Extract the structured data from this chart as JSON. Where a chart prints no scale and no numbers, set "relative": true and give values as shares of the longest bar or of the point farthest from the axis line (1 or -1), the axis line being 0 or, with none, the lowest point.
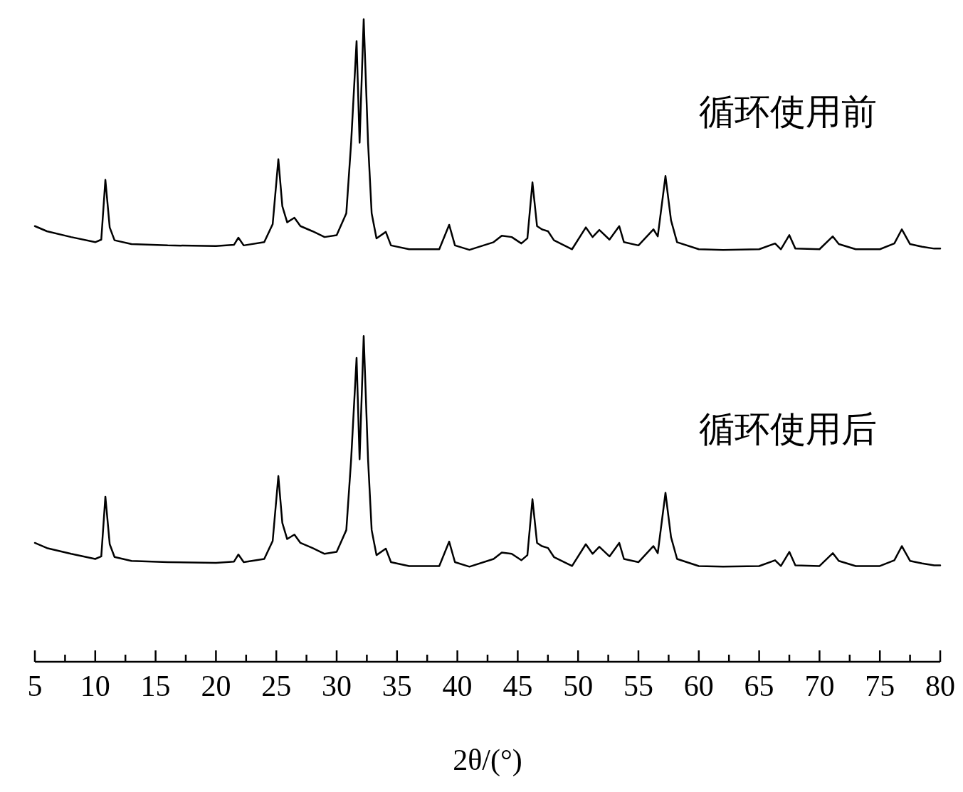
{
  "chart_data": {
    "type": "line",
    "relative": true,
    "xlabel": "2θ/(°)",
    "tick_labels": "x",
    "grid": false,
    "marker": "none",
    "line_style": "solid",
    "xlim": [
      5,
      80
    ],
    "xticks": [
      5,
      {
        "value": 7.5,
        "label": null
      },
      10,
      {
        "value": 12.5,
        "label": null
      },
      15,
      {
        "value": 17.5,
        "label": null
      },
      20,
      {
        "value": 22.5,
        "label": null
      },
      25,
      {
        "value": 27.5,
        "label": null
      },
      30,
      {
        "value": 32.5,
        "label": null
      },
      35,
      {
        "value": 37.5,
        "label": null
      },
      40,
      {
        "value": 42.5,
        "label": null
      },
      45,
      {
        "value": 47.5,
        "label": null
      },
      50,
      {
        "value": 52.5,
        "label": null
      },
      55,
      {
        "value": 57.5,
        "label": null
      },
      60,
      {
        "value": 62.5,
        "label": null
      },
      65,
      {
        "value": 67.5,
        "label": null
      },
      70,
      {
        "value": 72.5,
        "label": null
      },
      75,
      {
        "value": 77.5,
        "label": null
      },
      80
    ],
    "x": [
      5,
      6,
      8,
      10,
      10.5,
      10.84,
      11.2,
      11.6,
      13,
      16,
      20,
      21.5,
      21.86,
      22.3,
      24,
      24.7,
      25.17,
      25.5,
      25.9,
      26.5,
      27,
      28,
      29,
      30,
      30.8,
      31.2,
      31.65,
      31.9,
      32.24,
      32.6,
      32.9,
      33.3,
      34.07,
      34.5,
      36,
      38.5,
      39.32,
      39.8,
      41,
      43,
      43.68,
      44.5,
      45.3,
      45.8,
      46.22,
      46.6,
      47,
      47.51,
      48,
      49.5,
      50.64,
      51.2,
      51.76,
      52.6,
      53.41,
      53.8,
      55,
      56.24,
      56.6,
      57.24,
      57.7,
      58.2,
      60,
      62,
      65,
      66.32,
      66.8,
      67.5,
      68,
      70,
      71.1,
      71.6,
      73,
      75,
      76.2,
      76.82,
      77.5,
      78.5,
      79.5,
      80
    ],
    "series": [
      {
        "name": "循环使用前",
        "color": "#000000",
        "values": [
          0.678,
          0.67,
          0.661,
          0.653,
          0.657,
          0.75,
          0.676,
          0.656,
          0.65,
          0.648,
          0.647,
          0.649,
          0.66,
          0.648,
          0.653,
          0.681,
          0.782,
          0.709,
          0.684,
          0.691,
          0.678,
          0.67,
          0.661,
          0.664,
          0.698,
          0.808,
          0.966,
          0.808,
          1,
          0.808,
          0.698,
          0.659,
          0.669,
          0.648,
          0.642,
          0.642,
          0.68,
          0.648,
          0.641,
          0.653,
          0.663,
          0.661,
          0.651,
          0.659,
          0.746,
          0.678,
          0.673,
          0.67,
          0.656,
          0.642,
          0.676,
          0.661,
          0.672,
          0.657,
          0.678,
          0.653,
          0.648,
          0.673,
          0.662,
          0.756,
          0.687,
          0.653,
          0.642,
          0.641,
          0.642,
          0.651,
          0.642,
          0.664,
          0.643,
          0.642,
          0.662,
          0.65,
          0.642,
          0.642,
          0.651,
          0.673,
          0.65,
          0.646,
          0.643,
          0.643
        ]
      },
      {
        "name": "循环使用后",
        "color": "#000000",
        "values": [
          0.185,
          0.177,
          0.168,
          0.16,
          0.164,
          0.257,
          0.183,
          0.163,
          0.157,
          0.155,
          0.154,
          0.156,
          0.167,
          0.155,
          0.16,
          0.188,
          0.289,
          0.216,
          0.191,
          0.198,
          0.185,
          0.177,
          0.168,
          0.171,
          0.205,
          0.315,
          0.473,
          0.315,
          0.507,
          0.315,
          0.205,
          0.166,
          0.176,
          0.155,
          0.149,
          0.149,
          0.187,
          0.155,
          0.148,
          0.16,
          0.17,
          0.168,
          0.158,
          0.166,
          0.253,
          0.185,
          0.18,
          0.177,
          0.163,
          0.149,
          0.183,
          0.168,
          0.179,
          0.164,
          0.185,
          0.16,
          0.155,
          0.18,
          0.169,
          0.263,
          0.194,
          0.16,
          0.149,
          0.148,
          0.149,
          0.158,
          0.149,
          0.171,
          0.15,
          0.149,
          0.169,
          0.157,
          0.149,
          0.149,
          0.158,
          0.18,
          0.157,
          0.153,
          0.15,
          0.15
        ]
      }
    ]
  }
}
